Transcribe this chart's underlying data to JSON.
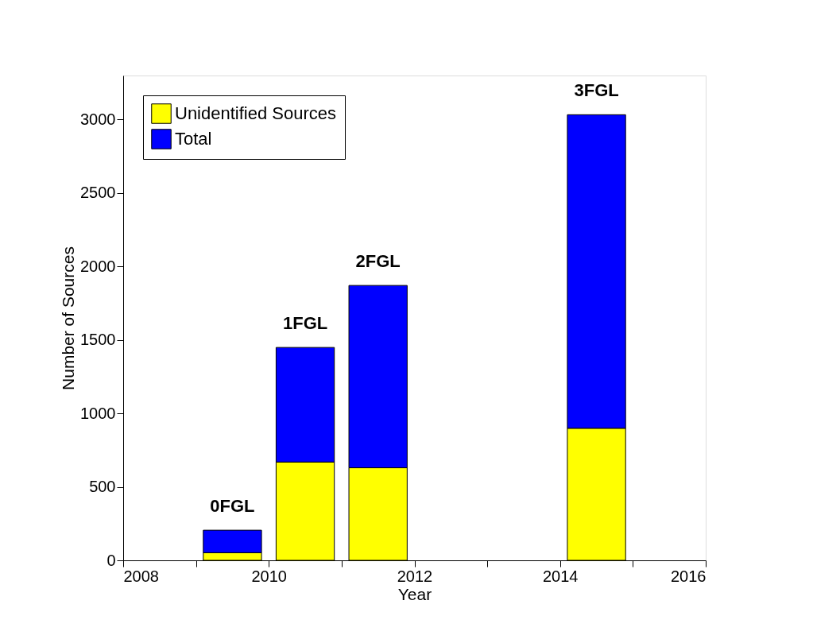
{
  "chart_data": {
    "type": "bar",
    "stacked": true,
    "xlabel": "Year",
    "ylabel": "Number of Sources",
    "x": [
      2009.5,
      2010.5,
      2011.5,
      2014.5
    ],
    "series": [
      {
        "name": "Unidentified Sources",
        "color": "#ffff00",
        "values": [
          52,
          669,
          630,
          899
        ]
      },
      {
        "name": "Total",
        "color": "#0000ff",
        "values": [
          153,
          780,
          1241,
          2134
        ]
      }
    ],
    "xlim": [
      2008,
      2016
    ],
    "xticks": [
      2008,
      {
        "value": 2009,
        "label": null
      },
      2010,
      {
        "value": 2011,
        "label": null
      },
      2012,
      {
        "value": 2013,
        "label": null
      },
      2014,
      {
        "value": 2015,
        "label": null
      },
      2016
    ],
    "ylim": [
      0,
      3300
    ],
    "yticks": [
      0,
      500,
      1000,
      1500,
      2000,
      2500,
      3000
    ],
    "annotations": [
      "0FGL",
      "1FGL",
      "2FGL",
      "3FGL"
    ],
    "legend": "top left",
    "grid": false
  }
}
